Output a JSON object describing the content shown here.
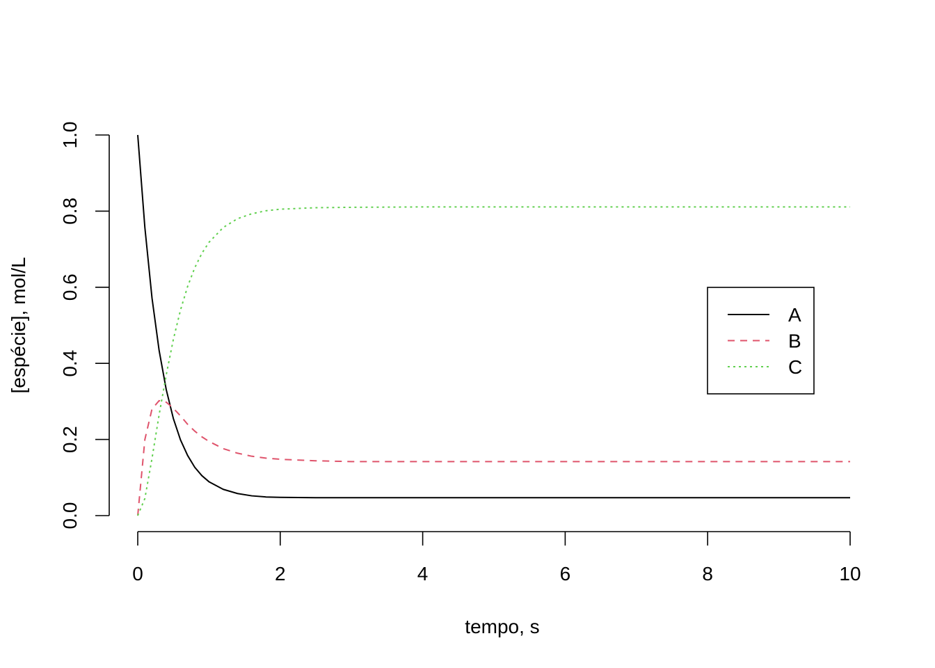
{
  "chart_data": {
    "type": "line",
    "title": "",
    "xlabel": "tempo, s",
    "ylabel": "[espécie], mol/L",
    "xlim": [
      0,
      10
    ],
    "ylim": [
      0,
      1.0
    ],
    "x_ticks": [
      0,
      2,
      4,
      6,
      8,
      10
    ],
    "x_tick_labels": [
      "0",
      "2",
      "4",
      "6",
      "8",
      "10"
    ],
    "y_ticks": [
      0.0,
      0.2,
      0.4,
      0.6,
      0.8,
      1.0
    ],
    "y_tick_labels": [
      "0.0",
      "0.2",
      "0.4",
      "0.6",
      "0.8",
      "1.0"
    ],
    "legend_position": "right",
    "grid": false,
    "x": [
      0,
      0.1,
      0.2,
      0.3,
      0.4,
      0.5,
      0.6,
      0.7,
      0.8,
      0.9,
      1.0,
      1.2,
      1.4,
      1.6,
      1.8,
      2.0,
      2.5,
      3.0,
      4.0,
      5.0,
      6.0,
      7.0,
      8.0,
      9.0,
      10.0
    ],
    "series": [
      {
        "name": "A",
        "color": "#000000",
        "dash": "solid",
        "values": [
          1.0,
          0.757,
          0.572,
          0.434,
          0.331,
          0.255,
          0.199,
          0.158,
          0.127,
          0.105,
          0.089,
          0.069,
          0.058,
          0.052,
          0.049,
          0.048,
          0.047,
          0.047,
          0.047,
          0.047,
          0.047,
          0.047,
          0.047,
          0.047,
          0.047
        ]
      },
      {
        "name": "B",
        "color": "#DF536B",
        "dash": "dashed",
        "values": [
          0.0,
          0.2,
          0.28,
          0.302,
          0.298,
          0.282,
          0.262,
          0.24,
          0.222,
          0.207,
          0.195,
          0.176,
          0.164,
          0.156,
          0.151,
          0.148,
          0.144,
          0.142,
          0.142,
          0.142,
          0.142,
          0.142,
          0.142,
          0.142,
          0.142
        ]
      },
      {
        "name": "C",
        "color": "#61D04F",
        "dash": "dotted",
        "values": [
          0.0,
          0.045,
          0.15,
          0.265,
          0.37,
          0.463,
          0.54,
          0.602,
          0.651,
          0.689,
          0.718,
          0.757,
          0.78,
          0.793,
          0.801,
          0.805,
          0.809,
          0.81,
          0.811,
          0.811,
          0.811,
          0.811,
          0.811,
          0.811,
          0.811
        ]
      }
    ]
  }
}
